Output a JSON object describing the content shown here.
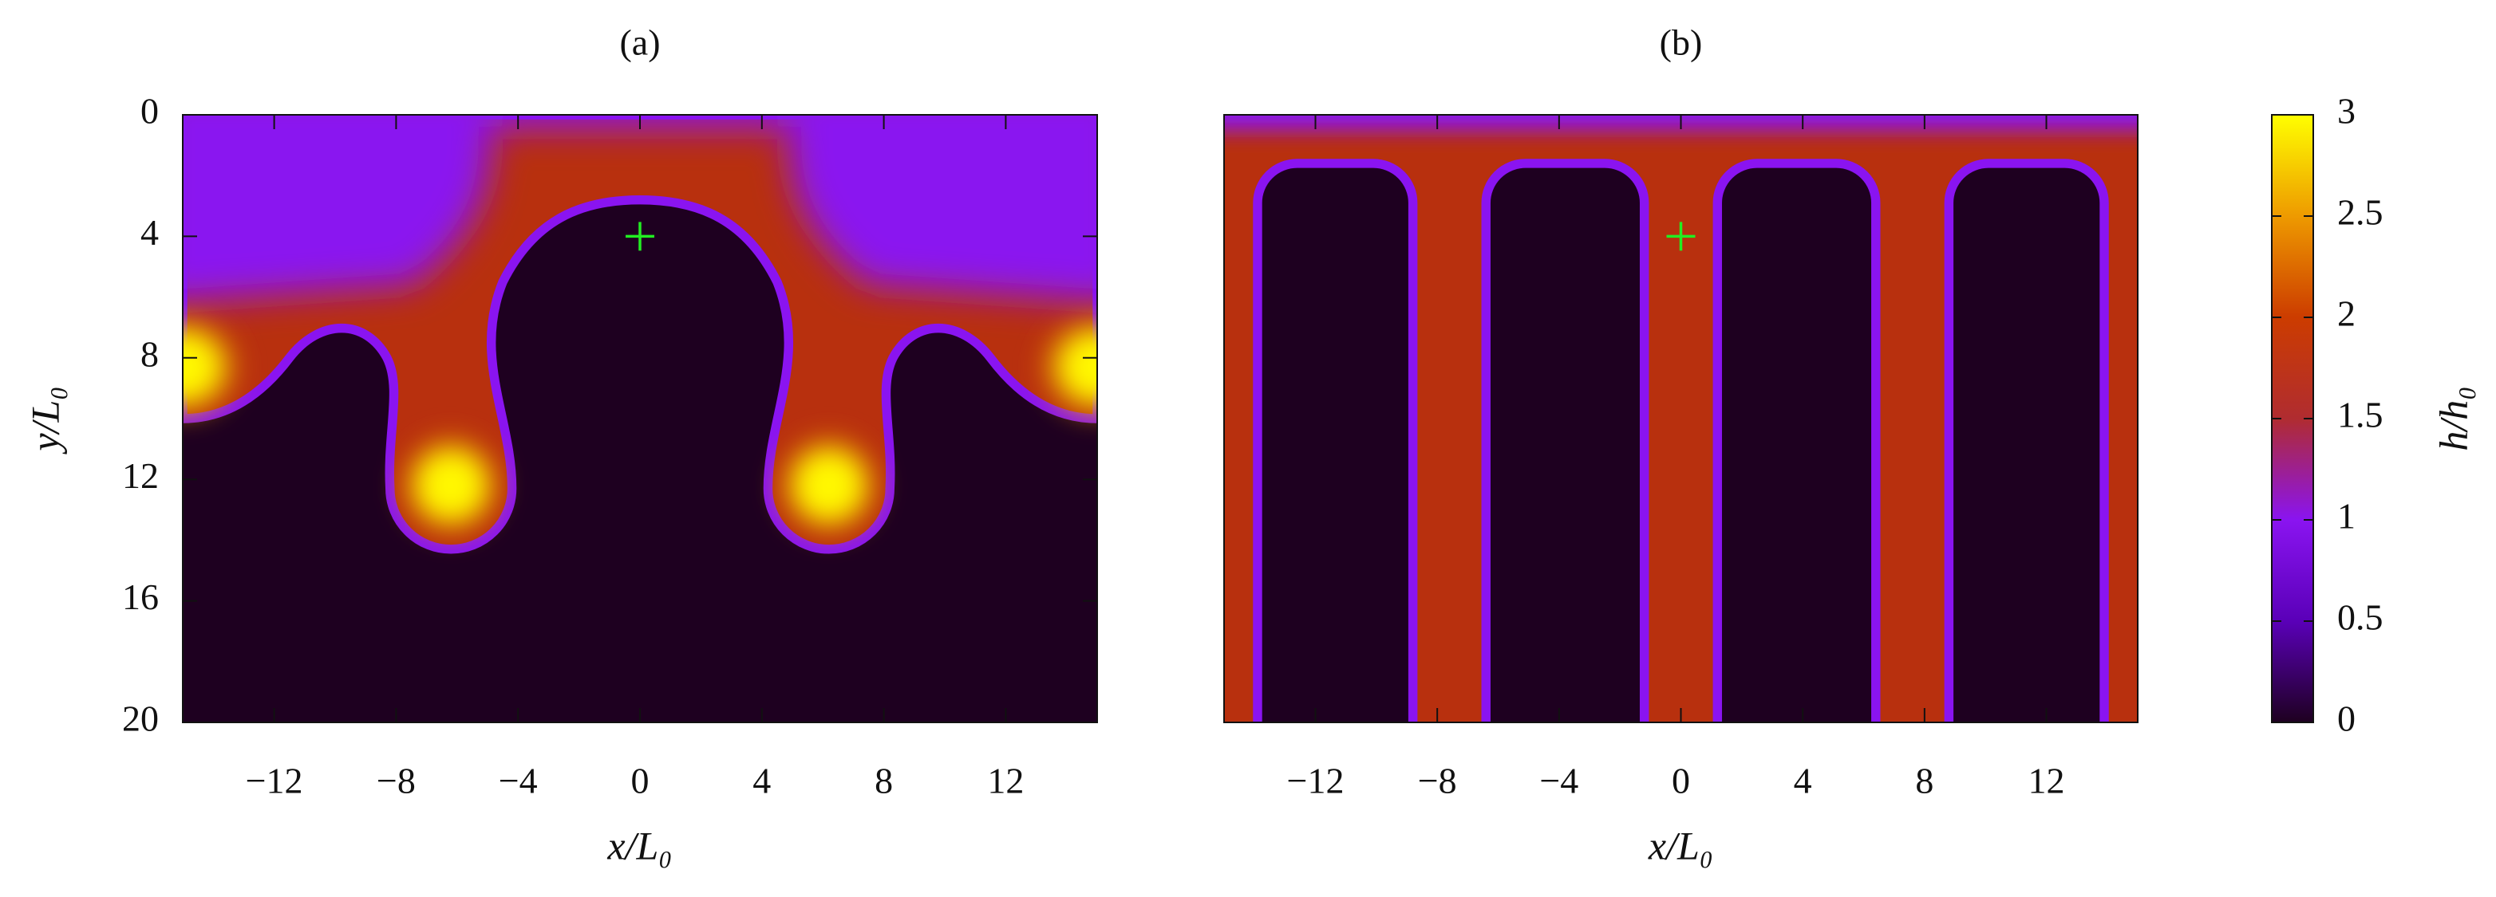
{
  "chart_data": [
    {
      "type": "heatmap",
      "title": "(a)",
      "x_label": "x/L₀",
      "y_label": "y/L₀",
      "xlim": [
        -15,
        15
      ],
      "ylim": [
        20,
        0
      ],
      "xticks": [
        {
          "value": -12,
          "label": "−12"
        },
        {
          "value": -8,
          "label": "−8"
        },
        {
          "value": -4,
          "label": "−4"
        },
        0,
        4,
        8,
        12
      ],
      "yticks": [
        0,
        4,
        8,
        12,
        16,
        20
      ],
      "markers": {
        "color": "#22ee22",
        "x": [
          0
        ],
        "y": [
          4
        ]
      }
    },
    {
      "type": "heatmap",
      "title": "(b)",
      "x_label": "x/L₀",
      "xlim": [
        -15,
        15
      ],
      "ylim": [
        20,
        0
      ],
      "xticks": [
        {
          "value": -12,
          "label": "−12"
        },
        {
          "value": -8,
          "label": "−8"
        },
        {
          "value": -4,
          "label": "−4"
        },
        0,
        4,
        8,
        12
      ],
      "markers": {
        "color": "#22ee22",
        "x": [
          0
        ],
        "y": [
          4
        ]
      }
    },
    {
      "type": "colorbar",
      "label": "h/h₀",
      "ylim": [
        0,
        3
      ],
      "yticks": [
        0,
        0.5,
        1,
        1.5,
        2,
        2.5,
        3
      ],
      "colors": [
        "#1e0020",
        "#5a00b8",
        "#8a14f0",
        "#b02c30",
        "#cc3c00",
        "#ee9a00",
        "#ffff00"
      ]
    }
  ]
}
